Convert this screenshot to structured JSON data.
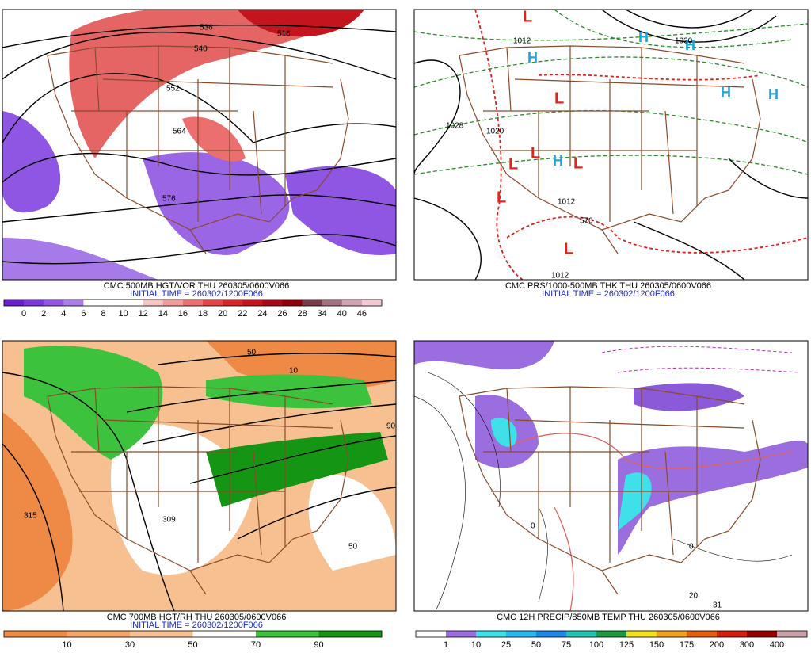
{
  "panels": [
    {
      "caption": "CMC 500MB HGT/VOR THU 260305/0600V066",
      "initial_time": "INITIAL TIME = 260302/1200F066",
      "colorbar": {
        "colors": [
          "#6a1fd1",
          "#8036dc",
          "#9455e3",
          "#ad7ceb",
          "#ffffff",
          "#ffffff",
          "#ffffff",
          "#f7c3c3",
          "#f29a9a",
          "#ec6f6f",
          "#e44646",
          "#d82525",
          "#c4141e",
          "#a80a14",
          "#8c000c",
          "#7a3a48",
          "#a47080",
          "#d3a2b2",
          "#f5c8d4"
        ],
        "labels": [
          "0",
          "2",
          "4",
          "6",
          "8",
          "10",
          "12",
          "14",
          "16",
          "18",
          "20",
          "22",
          "24",
          "26",
          "28",
          "34",
          "40",
          "46"
        ]
      },
      "map_labels": [
        "536",
        "540",
        "552",
        "564",
        "576",
        "516"
      ]
    },
    {
      "caption": "CMC PRS/1000-500MB THK THU 260305/0600V066",
      "initial_time": "INITIAL TIME = 260302/1200F066",
      "map_labels": [
        "L",
        "L",
        "L",
        "L",
        "L",
        "L",
        "L",
        "H",
        "H",
        "H",
        "H",
        "H",
        "H",
        "1012",
        "1020",
        "1028",
        "1030",
        "1012",
        "570",
        "1012"
      ]
    },
    {
      "caption": "CMC 700MB HGT/RH THU 260305/0600V066",
      "initial_time": "INITIAL TIME = 260302/1200F066",
      "colorbar": {
        "colors": [
          "#ee8a45",
          "#f3a468",
          "#f7c090",
          "#ffffff",
          "#3cc23c",
          "#149614"
        ],
        "labels": [
          "10",
          "30",
          "50",
          "70",
          "90"
        ]
      },
      "map_labels": [
        "315",
        "309",
        "50",
        "10",
        "90",
        "50"
      ]
    },
    {
      "caption": "CMC 12H PRECIP/850MB TEMP THU 260305/0600V066",
      "colorbar": {
        "colors": [
          "#ffffff",
          "#9b6ee0",
          "#3fe0e8",
          "#2bb8f0",
          "#1e88e8",
          "#26c0b0",
          "#1f9a40",
          "#f0e020",
          "#f0a020",
          "#e06010",
          "#d02010",
          "#900000",
          "#c8a0a8"
        ],
        "labels": [
          "1",
          "10",
          "25",
          "50",
          "75",
          "100",
          "125",
          "150",
          "175",
          "200",
          "300",
          "400"
        ]
      },
      "map_labels": [
        "0",
        "20",
        "31",
        "0"
      ]
    }
  ]
}
